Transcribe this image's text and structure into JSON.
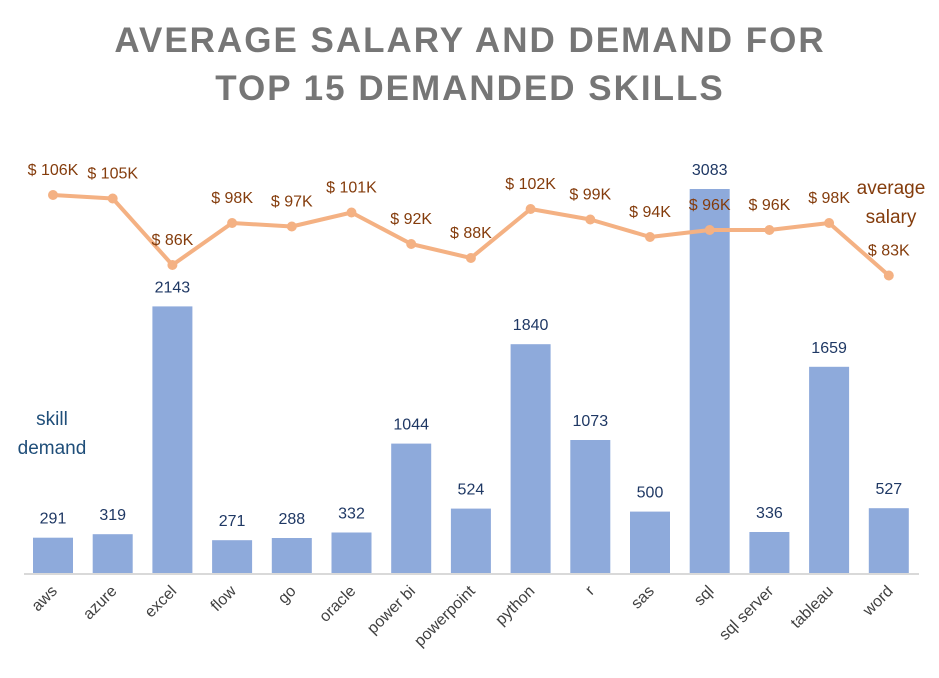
{
  "chart_data": {
    "type": "bar",
    "title_lines": [
      "AVERAGE SALARY AND DEMAND FOR",
      "TOP 15 DEMANDED SKILLS"
    ],
    "categories": [
      "aws",
      "azure",
      "excel",
      "flow",
      "go",
      "oracle",
      "power bi",
      "powerpoint",
      "python",
      "r",
      "sas",
      "sql",
      "sql server",
      "tableau",
      "word"
    ],
    "series": [
      {
        "name": "skill demand",
        "kind": "bar",
        "color": "#8eaadb",
        "values": [
          291,
          319,
          2143,
          271,
          288,
          332,
          1044,
          524,
          1840,
          1073,
          500,
          3083,
          336,
          1659,
          527
        ],
        "labels": [
          "291",
          "319",
          "2143",
          "271",
          "288",
          "332",
          "1044",
          "524",
          "1840",
          "1073",
          "500",
          "3083",
          "336",
          "1659",
          "527"
        ]
      },
      {
        "name": "average salary",
        "kind": "line",
        "color": "#f4b183",
        "values": [
          106,
          105,
          86,
          98,
          97,
          101,
          92,
          88,
          102,
          99,
          94,
          96,
          96,
          98,
          83
        ],
        "labels": [
          "$ 106K",
          "$ 105K",
          "$ 86K",
          "$ 98K",
          "$ 97K",
          "$ 101K",
          "$ 92K",
          "$ 88K",
          "$ 102K",
          "$ 99K",
          "$ 94K",
          "$ 96K",
          "$ 96K",
          "$ 98K",
          "$ 83K"
        ]
      }
    ],
    "legend": {
      "demand": [
        "skill",
        "demand"
      ],
      "salary": [
        "average",
        "salary"
      ]
    },
    "grid": false
  }
}
